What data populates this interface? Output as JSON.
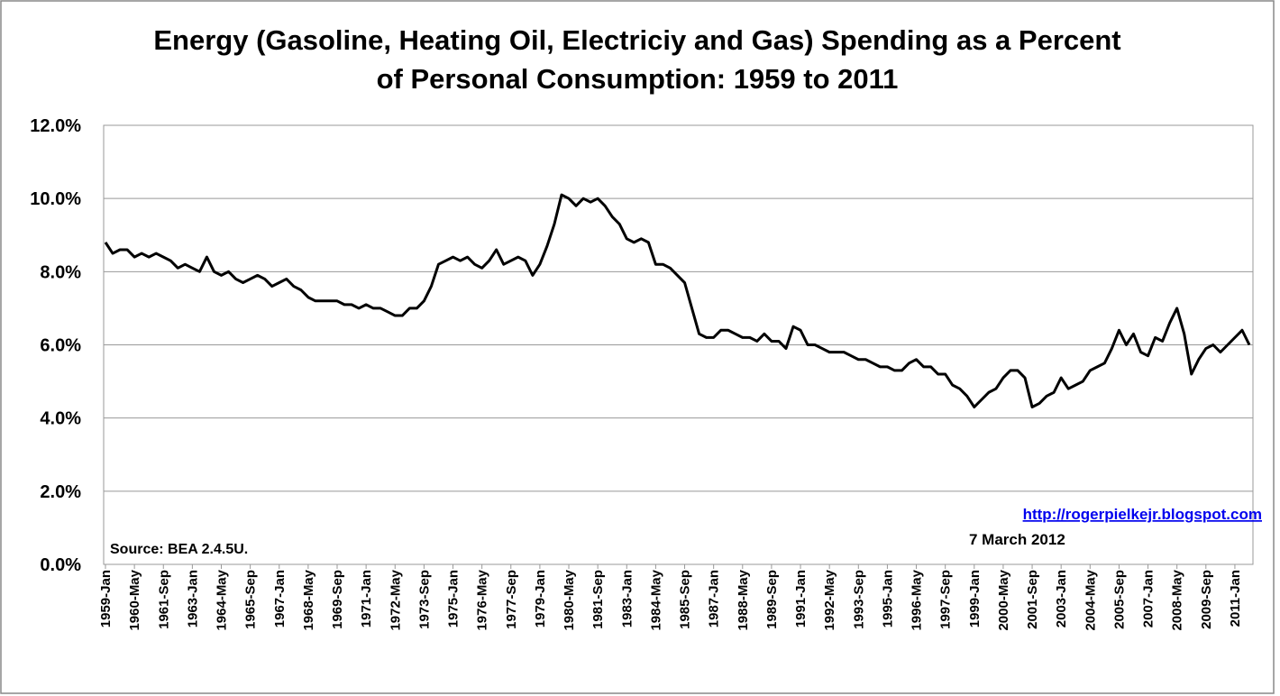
{
  "chart_data": {
    "type": "line",
    "title": [
      "Energy (Gasoline, Heating Oil, Electriciy and Gas) Spending as a Percent",
      "of Personal Consumption: 1959 to 2011"
    ],
    "source": "Source: BEA 2.4.5U.",
    "link": "http://rogerpielkejr.blogspot.com",
    "date": "7 March 2012",
    "categories": [
      "1959-Jan",
      null,
      null,
      null,
      "1960-May",
      null,
      null,
      null,
      "1961-Sep",
      null,
      null,
      null,
      "1963-Jan",
      null,
      null,
      null,
      "1964-May",
      null,
      null,
      null,
      "1965-Sep",
      null,
      null,
      null,
      "1967-Jan",
      null,
      null,
      null,
      "1968-May",
      null,
      null,
      null,
      "1969-Sep",
      null,
      null,
      null,
      "1971-Jan",
      null,
      null,
      null,
      "1972-May",
      null,
      null,
      null,
      "1973-Sep",
      null,
      null,
      null,
      "1975-Jan",
      null,
      null,
      null,
      "1976-May",
      null,
      null,
      null,
      "1977-Sep",
      null,
      null,
      null,
      "1979-Jan",
      null,
      null,
      null,
      "1980-May",
      null,
      null,
      null,
      "1981-Sep",
      null,
      null,
      null,
      "1983-Jan",
      null,
      null,
      null,
      "1984-May",
      null,
      null,
      null,
      "1985-Sep",
      null,
      null,
      null,
      "1987-Jan",
      null,
      null,
      null,
      "1988-May",
      null,
      null,
      null,
      "1989-Sep",
      null,
      null,
      null,
      "1991-Jan",
      null,
      null,
      null,
      "1992-May",
      null,
      null,
      null,
      "1993-Sep",
      null,
      null,
      null,
      "1995-Jan",
      null,
      null,
      null,
      "1996-May",
      null,
      null,
      null,
      "1997-Sep",
      null,
      null,
      null,
      "1999-Jan",
      null,
      null,
      null,
      "2000-May",
      null,
      null,
      null,
      "2001-Sep",
      null,
      null,
      null,
      "2003-Jan",
      null,
      null,
      null,
      "2004-May",
      null,
      null,
      null,
      "2005-Sep",
      null,
      null,
      null,
      "2007-Jan",
      null,
      null,
      null,
      "2008-May",
      null,
      null,
      null,
      "2009-Sep",
      null,
      null,
      null,
      "2011-Jan",
      null,
      null
    ],
    "series": [
      {
        "color": "#000000",
        "values": [
          8.8,
          8.5,
          8.6,
          8.6,
          8.4,
          8.5,
          8.4,
          8.5,
          8.4,
          8.3,
          8.1,
          8.2,
          8.1,
          8.0,
          8.4,
          8.0,
          7.9,
          8.0,
          7.8,
          7.7,
          7.8,
          7.9,
          7.8,
          7.6,
          7.7,
          7.8,
          7.6,
          7.5,
          7.3,
          7.2,
          7.2,
          7.2,
          7.2,
          7.1,
          7.1,
          7.0,
          7.1,
          7.0,
          7.0,
          6.9,
          6.8,
          6.8,
          7.0,
          7.0,
          7.2,
          7.6,
          8.2,
          8.3,
          8.4,
          8.3,
          8.4,
          8.2,
          8.1,
          8.3,
          8.6,
          8.2,
          8.3,
          8.4,
          8.3,
          7.9,
          8.2,
          8.7,
          9.3,
          10.1,
          10.0,
          9.8,
          10.0,
          9.9,
          10.0,
          9.8,
          9.5,
          9.3,
          8.9,
          8.8,
          8.9,
          8.8,
          8.2,
          8.2,
          8.1,
          7.9,
          7.7,
          7.0,
          6.3,
          6.2,
          6.2,
          6.4,
          6.4,
          6.3,
          6.2,
          6.2,
          6.1,
          6.3,
          6.1,
          6.1,
          5.9,
          6.5,
          6.4,
          6.0,
          6.0,
          5.9,
          5.8,
          5.8,
          5.8,
          5.7,
          5.6,
          5.6,
          5.5,
          5.4,
          5.4,
          5.3,
          5.3,
          5.5,
          5.6,
          5.4,
          5.4,
          5.2,
          5.2,
          4.9,
          4.8,
          4.6,
          4.3,
          4.5,
          4.7,
          4.8,
          5.1,
          5.3,
          5.3,
          5.1,
          4.3,
          4.4,
          4.6,
          4.7,
          5.1,
          4.8,
          4.9,
          5.0,
          5.3,
          5.4,
          5.5,
          5.9,
          6.4,
          6.0,
          6.3,
          5.8,
          5.7,
          6.2,
          6.1,
          6.6,
          7.0,
          6.3,
          5.2,
          5.6,
          5.9,
          6.0,
          5.8,
          6.0,
          6.2,
          6.4,
          6.0
        ]
      }
    ],
    "ylim": [
      0,
      12
    ],
    "yticks": [
      {
        "value": 0,
        "label": "0.0%"
      },
      {
        "value": 2,
        "label": "2.0%"
      },
      {
        "value": 4,
        "label": "4.0%"
      },
      {
        "value": 6,
        "label": "6.0%"
      },
      {
        "value": 8,
        "label": "8.0%"
      },
      {
        "value": 10,
        "label": "10.0%"
      },
      {
        "value": 12,
        "label": "12.0%"
      }
    ],
    "grid": true
  }
}
